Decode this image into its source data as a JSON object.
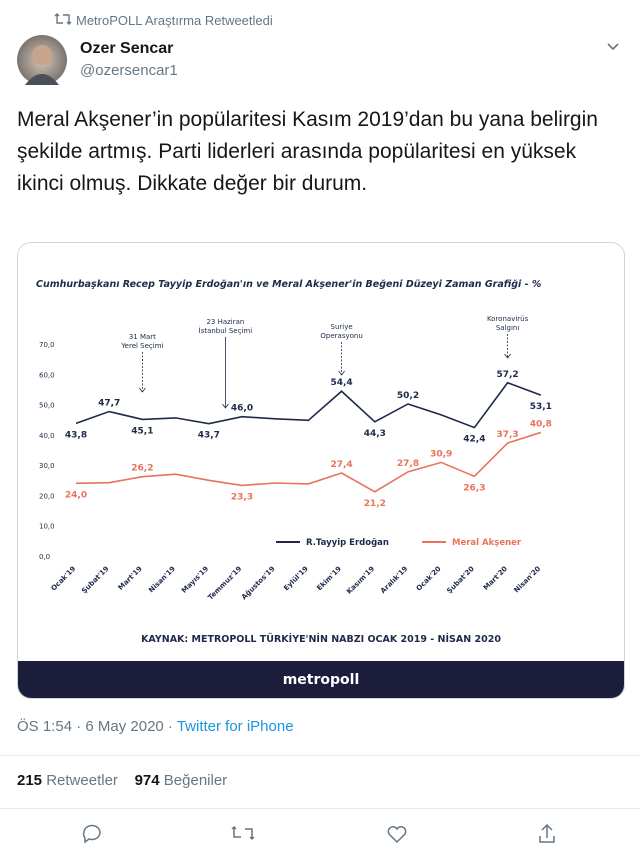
{
  "retweet_note": "MetroPOLL Araştırma Retweetledi",
  "author": {
    "name": "Ozer Sencar",
    "handle": "@ozersencar1"
  },
  "text": "Meral Akşener’in popülaritesi Kasım 2019’dan bu yana belirgin şekilde artmış. Parti liderleri arasında popülaritesi en yüksek ikinci olmuş. Dikkate değer bir durum.",
  "chart_data": {
    "type": "line",
    "title": "Cumhurbaşkanı Recep Tayyip Erdoğan'ın ve Meral Akşener'in Beğeni Düzeyi Zaman Grafiği - %",
    "categories": [
      "Ocak'19",
      "Şubat'19",
      "Mart'19",
      "Nisan'19",
      "Mayıs'19",
      "Temmuz'19",
      "Ağustos'19",
      "Eylül'19",
      "Ekim'19",
      "Kasım'19",
      "Aralık'19",
      "Ocak'20",
      "Şubat'20",
      "Mart'20",
      "Nisan'20"
    ],
    "series": [
      {
        "name": "R.Tayyip Erdoğan",
        "color": "#1f2a4a",
        "values": [
          43.8,
          47.7,
          45.1,
          45.6,
          43.7,
          46.0,
          45.3,
          44.8,
          54.4,
          44.3,
          50.2,
          46.6,
          42.4,
          57.2,
          53.1
        ],
        "value_labels": [
          "43,8",
          "47,7",
          "45,1",
          null,
          "43,7",
          "46,0",
          null,
          null,
          "54,4",
          "44,3",
          "50,2",
          null,
          "42,4",
          "57,2",
          "53,1"
        ]
      },
      {
        "name": "Meral Akşener",
        "color": "#e8735a",
        "values": [
          24.0,
          24.2,
          26.2,
          27.0,
          25.0,
          23.3,
          24.1,
          23.8,
          27.4,
          21.2,
          27.8,
          30.9,
          26.3,
          37.3,
          40.8
        ],
        "value_labels": [
          "24,0",
          null,
          "26,2",
          null,
          null,
          "23,3",
          null,
          null,
          "27,4",
          "21,2",
          "27,8",
          "30,9",
          "26,3",
          "37,3",
          "40,8"
        ]
      }
    ],
    "ylim": [
      0,
      70
    ],
    "yticks": [
      {
        "value": 0,
        "label": "0,0"
      },
      {
        "value": 10,
        "label": "10,0"
      },
      {
        "value": 20,
        "label": "20,0"
      },
      {
        "value": 30,
        "label": "30,0"
      },
      {
        "value": 40,
        "label": "40,0"
      },
      {
        "value": 50,
        "label": "50,0"
      },
      {
        "value": 60,
        "label": "60,0"
      },
      {
        "value": 70,
        "label": "70,0"
      }
    ],
    "grid": false,
    "annotations": [
      "31 Mart Yerel Seçimi",
      "23 Haziran İstanbul Seçimi",
      "Suriye Operasyonu",
      "Koronavirüs Salgını"
    ],
    "source": "KAYNAK: METROPOLL TÜRKİYE'NİN NABZI OCAK 2019 - NİSAN 2020",
    "brand": "metropoll"
  },
  "meta": {
    "time": "ÖS 1:54 · 6 May 2020",
    "separator": "·",
    "client": "Twitter for iPhone"
  },
  "stats": {
    "retweets": "215",
    "retweets_label": "Retweetler",
    "likes": "974",
    "likes_label": "Beğeniler"
  }
}
